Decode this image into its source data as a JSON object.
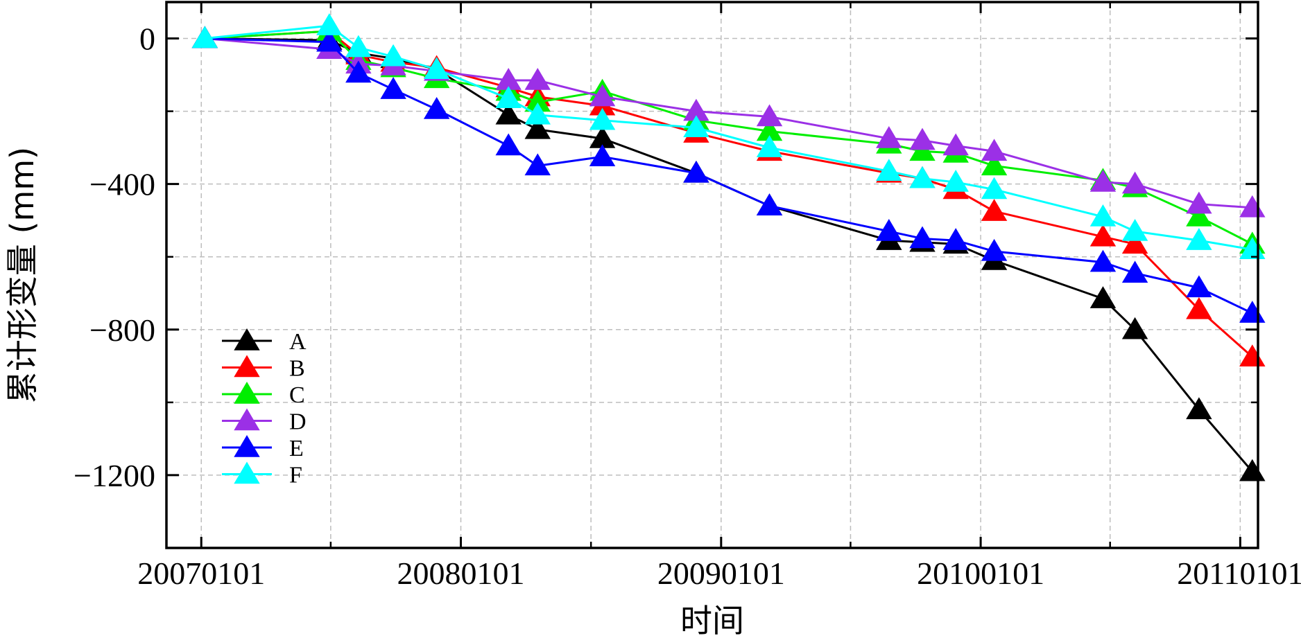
{
  "chart_data": {
    "type": "line",
    "title": "",
    "xlabel": "时间",
    "ylabel": "累计形变量 (mm)",
    "x_tick_labels": [
      "20070101",
      "20080101",
      "20090101",
      "20100101",
      "20110101"
    ],
    "y_ticks": [
      0,
      -400,
      -800,
      -1200
    ],
    "y_tick_labels": [
      "0",
      "−400",
      "−800",
      "−1200"
    ],
    "xlim": [
      "2006-11-13",
      "2011-01-26"
    ],
    "ylim": [
      -1400,
      100
    ],
    "grid": true,
    "legend_position": "bottom-left",
    "marker": "triangle",
    "x": [
      "2007-01-06",
      "2007-06-30",
      "2007-08-10",
      "2007-09-28",
      "2007-11-28",
      "2008-03-08",
      "2008-04-18",
      "2008-07-18",
      "2008-11-27",
      "2009-03-10",
      "2009-08-25",
      "2009-10-11",
      "2009-11-27",
      "2010-01-20",
      "2010-06-22",
      "2010-08-06",
      "2010-11-04",
      "2011-01-18"
    ],
    "series": [
      {
        "name": "A",
        "color": "#000000",
        "values": [
          0,
          -5,
          -40,
          -55,
          -85,
          -210,
          -250,
          -275,
          -370,
          -460,
          -555,
          -560,
          -565,
          -610,
          -715,
          -800,
          -1020,
          -1190
        ]
      },
      {
        "name": "B",
        "color": "#ff0000",
        "values": [
          0,
          20,
          -45,
          -65,
          -80,
          -135,
          -160,
          -185,
          -260,
          -310,
          -370,
          -385,
          -415,
          -475,
          -545,
          -565,
          -745,
          -875
        ]
      },
      {
        "name": "C",
        "color": "#00ee00",
        "values": [
          0,
          20,
          -60,
          -80,
          -110,
          -145,
          -175,
          -145,
          -225,
          -255,
          -290,
          -310,
          -315,
          -350,
          -390,
          -410,
          -490,
          -565
        ]
      },
      {
        "name": "D",
        "color": "#9b30e6",
        "values": [
          0,
          -30,
          -70,
          -75,
          -90,
          -115,
          -115,
          -160,
          -200,
          -215,
          -275,
          -280,
          -295,
          -310,
          -395,
          -400,
          -455,
          -465
        ]
      },
      {
        "name": "E",
        "color": "#0000ff",
        "values": [
          0,
          -10,
          -95,
          -140,
          -195,
          -295,
          -350,
          -325,
          -370,
          -460,
          -530,
          -550,
          -555,
          -585,
          -615,
          -645,
          -685,
          -755
        ]
      },
      {
        "name": "F",
        "color": "#00ffff",
        "values": [
          0,
          35,
          -25,
          -50,
          -85,
          -165,
          -210,
          -225,
          -245,
          -300,
          -365,
          -385,
          -395,
          -415,
          -490,
          -530,
          -555,
          -580
        ]
      }
    ]
  }
}
